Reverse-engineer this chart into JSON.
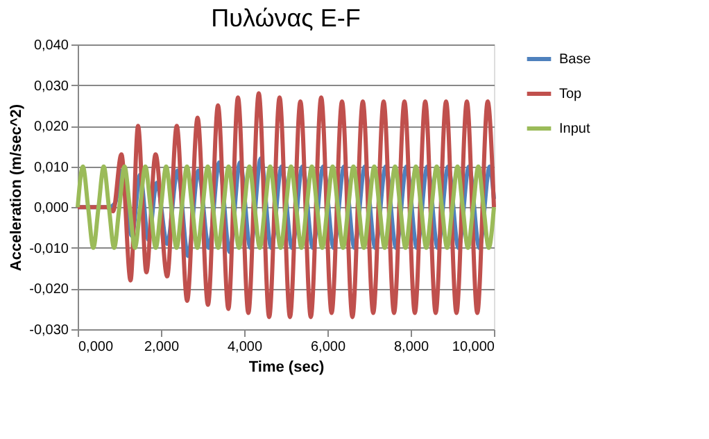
{
  "chart_data": {
    "type": "line",
    "title": "Πυλώνας E-F",
    "xlabel": "Time (sec)",
    "ylabel": "Acceleration (m/sec^2)",
    "xlim": [
      0,
      10
    ],
    "ylim": [
      -0.03,
      0.04
    ],
    "xticks": [
      {
        "value": 0,
        "label": "0,000"
      },
      {
        "value": 2,
        "label": "2,000"
      },
      {
        "value": 4,
        "label": "4,000"
      },
      {
        "value": 6,
        "label": "6,000"
      },
      {
        "value": 8,
        "label": "8,000"
      },
      {
        "value": 10,
        "label": "10,000"
      }
    ],
    "yticks": [
      {
        "value": -0.03,
        "label": "-0,030"
      },
      {
        "value": -0.02,
        "label": "-0,020"
      },
      {
        "value": -0.01,
        "label": "-0,010"
      },
      {
        "value": 0,
        "label": "0,000"
      },
      {
        "value": 0.01,
        "label": "0,010"
      },
      {
        "value": 0.02,
        "label": "0,020"
      },
      {
        "value": 0.03,
        "label": "0,030"
      },
      {
        "value": 0.04,
        "label": "0,040"
      }
    ],
    "grid": "y",
    "legend": "right",
    "marker": "none",
    "line_style": "solid",
    "series": [
      {
        "name": "Base",
        "color": "#4f81bd",
        "x": [
          0,
          0.75,
          0.9,
          1.05,
          1.3,
          1.5,
          1.7,
          1.9,
          2.15,
          2.4,
          2.65,
          2.9,
          3.15,
          3.4,
          3.65,
          3.9,
          4.15,
          4.4,
          4.65,
          4.9,
          5.15,
          5.4,
          5.65,
          5.9,
          6.15,
          6.4,
          6.65,
          6.9,
          7.15,
          7.4,
          7.65,
          7.9,
          8.15,
          8.4,
          8.65,
          8.9,
          9.15,
          9.4,
          9.65,
          9.9,
          10
        ],
        "values": [
          0,
          0,
          0.001,
          0.009,
          -0.007,
          0.008,
          -0.008,
          0.006,
          -0.009,
          0.009,
          -0.012,
          0.009,
          -0.01,
          0.011,
          -0.011,
          0.011,
          -0.01,
          0.012,
          -0.01,
          0.01,
          -0.01,
          0.01,
          -0.01,
          0.01,
          -0.01,
          0.01,
          -0.01,
          0.01,
          -0.01,
          0.01,
          -0.01,
          0.01,
          -0.01,
          0.01,
          -0.01,
          0.01,
          -0.01,
          0.01,
          -0.01,
          0.01,
          0.002
        ]
      },
      {
        "name": "Top",
        "color": "#c0504d",
        "x": [
          0,
          0.7,
          0.85,
          1.05,
          1.27,
          1.45,
          1.65,
          1.87,
          2.15,
          2.38,
          2.63,
          2.88,
          3.13,
          3.37,
          3.62,
          3.85,
          4.1,
          4.35,
          4.6,
          4.85,
          5.1,
          5.35,
          5.6,
          5.85,
          6.1,
          6.35,
          6.6,
          6.85,
          7.1,
          7.35,
          7.6,
          7.85,
          8.1,
          8.35,
          8.6,
          8.85,
          9.1,
          9.35,
          9.6,
          9.85,
          10
        ],
        "values": [
          0,
          0,
          -0.001,
          0.013,
          -0.018,
          0.02,
          -0.016,
          0.013,
          -0.017,
          0.02,
          -0.023,
          0.022,
          -0.024,
          0.025,
          -0.025,
          0.027,
          -0.026,
          0.028,
          -0.027,
          0.027,
          -0.027,
          0.026,
          -0.027,
          0.027,
          -0.026,
          0.026,
          -0.027,
          0.026,
          -0.026,
          0.026,
          -0.026,
          0.026,
          -0.026,
          0.026,
          -0.026,
          0.026,
          -0.026,
          0.026,
          -0.026,
          0.026,
          0
        ]
      },
      {
        "name": "Input",
        "color": "#9bbb59",
        "x": [
          0,
          0.125,
          0.25,
          0.375,
          0.5,
          0.625,
          0.75,
          0.875,
          1,
          1.125,
          1.25,
          1.375,
          1.5,
          1.625,
          1.75,
          1.875,
          2,
          2.125,
          2.25,
          2.375,
          2.5,
          2.625,
          2.75,
          2.875,
          3,
          3.125,
          3.25,
          3.375,
          3.5,
          3.625,
          3.75,
          3.875,
          4,
          4.125,
          4.25,
          4.375,
          4.5,
          4.625,
          4.75,
          4.875,
          5,
          5.125,
          5.25,
          5.375,
          5.5,
          5.625,
          5.75,
          5.875,
          6,
          6.125,
          6.25,
          6.375,
          6.5,
          6.625,
          6.75,
          6.875,
          7,
          7.125,
          7.25,
          7.375,
          7.5,
          7.625,
          7.75,
          7.875,
          8,
          8.125,
          8.25,
          8.375,
          8.5,
          8.625,
          8.75,
          8.875,
          9,
          9.125,
          9.25,
          9.375,
          9.5,
          9.625,
          9.75,
          9.875,
          10
        ],
        "values": [
          0,
          0.01,
          0,
          -0.01,
          0,
          0.01,
          0,
          -0.01,
          0,
          0.01,
          0,
          -0.01,
          0,
          0.01,
          0,
          -0.01,
          0,
          0.01,
          0,
          -0.01,
          0,
          0.01,
          0,
          -0.01,
          0,
          0.01,
          0,
          -0.01,
          0,
          0.01,
          0,
          -0.01,
          0,
          0.01,
          0,
          -0.01,
          0,
          0.01,
          0,
          -0.01,
          0,
          0.01,
          0,
          -0.01,
          0,
          0.01,
          0,
          -0.01,
          0,
          0.01,
          0,
          -0.01,
          0,
          0.01,
          0,
          -0.01,
          0,
          0.01,
          0,
          -0.01,
          0,
          0.01,
          0,
          -0.01,
          0,
          0.01,
          0,
          -0.01,
          0,
          0.01,
          0,
          -0.01,
          0,
          0.01,
          0,
          -0.01,
          0,
          0.01,
          0,
          -0.01,
          0
        ]
      }
    ]
  }
}
